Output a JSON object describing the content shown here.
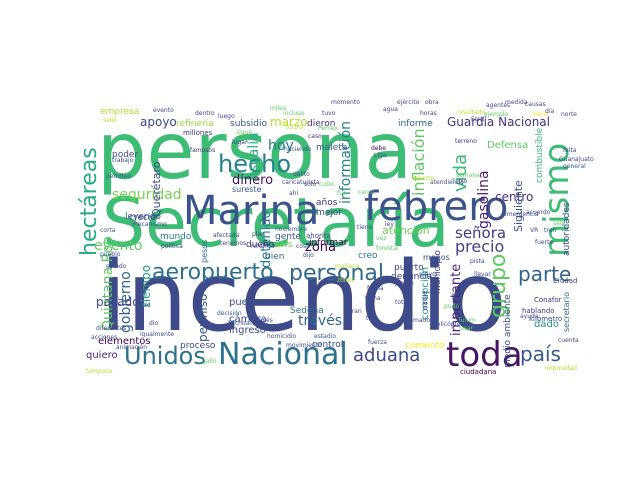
{
  "words": [
    {
      "text": "persona",
      "color": "#3cbc75"
    },
    {
      "text": "Secretaría",
      "color": "#3cbc75"
    },
    {
      "text": "incendio",
      "color": "#3e4a89"
    },
    {
      "text": "Marina",
      "color": "#3b528b"
    },
    {
      "text": "febrero",
      "color": "#3b528b"
    },
    {
      "text": "toda",
      "color": "#471365"
    },
    {
      "text": "Nacional",
      "color": "#2c728e"
    },
    {
      "text": "aeropuerto",
      "color": "#2d708e"
    },
    {
      "text": "personal",
      "color": "#31688e"
    },
    {
      "text": "mismo",
      "color": "#3cbc75"
    },
    {
      "text": "hecho",
      "color": "#26828e"
    },
    {
      "text": "parte",
      "color": "#33638d"
    },
    {
      "text": "Unidos",
      "color": "#2c728e"
    },
    {
      "text": "país",
      "color": "#38588c"
    },
    {
      "text": "aduana",
      "color": "#3e4989"
    },
    {
      "text": "grupo",
      "color": "#5ec962"
    },
    {
      "text": "hectáreas",
      "color": "#27ad81"
    },
    {
      "text": "precio",
      "color": "#414487"
    },
    {
      "text": "vida",
      "color": "#3cbc75"
    },
    {
      "text": "señora",
      "color": "#453781"
    },
    {
      "text": "seguridad",
      "color": "#7ad151"
    },
    {
      "text": "información",
      "color": "#26828e"
    },
    {
      "text": "inflación",
      "color": "#5ec962"
    },
    {
      "text": "fiscalía",
      "color": "#29af7f"
    },
    {
      "text": "Quintana Roo",
      "color": "#5ec962"
    },
    {
      "text": "evento",
      "color": "#5ec962"
    },
    {
      "text": "Guardia Nacional",
      "color": "#46337e"
    },
    {
      "text": "centro",
      "color": "#46307e"
    },
    {
      "text": "hoy",
      "color": "#2a788e"
    },
    {
      "text": "zona",
      "color": "#440154"
    },
    {
      "text": "dinero",
      "color": "#471365"
    },
    {
      "text": "marzo",
      "color": "#b8de29"
    },
    {
      "text": "apoyo",
      "color": "#3e4a89"
    },
    {
      "text": "gasolina",
      "color": "#482173"
    },
    {
      "text": "gobierno",
      "color": "#33638d"
    },
    {
      "text": "Siguiente",
      "color": "#3b528b"
    },
    {
      "text": "importante",
      "color": "#482878"
    },
    {
      "text": "través",
      "color": "#31688e"
    },
    {
      "text": "pasado",
      "color": "#3f4788"
    },
    {
      "text": "detenido",
      "color": "#2a788e"
    },
    {
      "text": "atención",
      "color": "#6ece58"
    },
    {
      "text": "Querétaro",
      "color": "#3e4989"
    },
    {
      "text": "permiso",
      "color": "#39568c"
    },
    {
      "text": "tiempo",
      "color": "#1f9e89"
    },
    {
      "text": "elementos",
      "color": "#440154"
    },
    {
      "text": "quiero",
      "color": "#482475"
    },
    {
      "text": "cámara",
      "color": "#3f4788"
    },
    {
      "text": "ingreso",
      "color": "#3e4989"
    },
    {
      "text": "pueden",
      "color": "#3b528b"
    },
    {
      "text": "Sedena",
      "color": "#2e6e8e"
    },
    {
      "text": "denuncia",
      "color": "#423f85"
    },
    {
      "text": "control",
      "color": "#3e4a89"
    },
    {
      "text": "corrupción",
      "color": "#21918c"
    },
    {
      "text": "municipio",
      "color": "#3e4a89"
    },
    {
      "text": "medio ambiente",
      "color": "#3b528b"
    },
    {
      "text": "proceso",
      "color": "#3f4889"
    },
    {
      "text": "comentó",
      "color": "#fde725"
    },
    {
      "text": "dado",
      "color": "#21918c"
    },
    {
      "text": "secretario",
      "color": "#33638d"
    },
    {
      "text": "autoridades",
      "color": "#3b528b"
    },
    {
      "text": "combustible",
      "color": "#3cbb75"
    },
    {
      "text": "Defensa",
      "color": "#5ec962"
    },
    {
      "text": "informe",
      "color": "#33638d"
    },
    {
      "text": "refinería",
      "color": "#a0da39"
    },
    {
      "text": "empresa",
      "color": "#b5de2b"
    },
    {
      "text": "subsidio",
      "color": "#39568c"
    },
    {
      "text": "dieron",
      "color": "#46337e"
    },
    {
      "text": "poder",
      "color": "#3f4788"
    },
    {
      "text": "leyendo",
      "color": "#38588c"
    },
    {
      "text": "mundo",
      "color": "#2a788e"
    },
    {
      "text": "pesos",
      "color": "#2e6e8e"
    },
    {
      "text": "dueño",
      "color": "#482878"
    },
    {
      "text": "sureste",
      "color": "#3b528b"
    },
    {
      "text": "mejor",
      "color": "#3e4a89"
    },
    {
      "text": "informar",
      "color": "#440154"
    },
    {
      "text": "gente",
      "color": "#3b528b"
    },
    {
      "text": "seis",
      "color": "#7ad151"
    },
    {
      "text": "bien",
      "color": "#31688e"
    },
    {
      "text": "creo",
      "color": "#2c728e"
    },
    {
      "text": "menos",
      "color": "#3b528b"
    },
    {
      "text": "puerto",
      "color": "#3f4788"
    },
    {
      "text": "años",
      "color": "#46337e"
    },
    {
      "text": "creció",
      "color": "#3e4a89"
    },
    {
      "text": "maleta",
      "color": "#38588c"
    },
    {
      "text": "ciudadana",
      "color": "#440154"
    },
    {
      "text": "Ciudad",
      "color": "#3e4a89"
    },
    {
      "text": "hablando",
      "color": "#453781"
    },
    {
      "text": "kilómetro",
      "color": "#3e4989"
    },
    {
      "text": "Conafor",
      "color": "#46307e"
    },
    {
      "text": "ahorita",
      "color": "#3e4a89"
    },
    {
      "text": "nadie",
      "color": "#3f4788"
    },
    {
      "text": "millones",
      "color": "#46307e"
    },
    {
      "text": "famosos",
      "color": "#453781"
    },
    {
      "text": "petróleo",
      "color": "#3b528b"
    },
    {
      "text": "trabajo",
      "color": "#3e4a89"
    },
    {
      "text": "general",
      "color": "#33638d"
    },
    {
      "text": "debe",
      "color": "#440154"
    },
    {
      "text": "caricaturista",
      "color": "#3e4a89"
    },
    {
      "text": "noviembre",
      "color": "#3b528b"
    },
    {
      "text": "decisión",
      "color": "#38588c"
    },
    {
      "text": "Michoacán",
      "color": "#3e4a89"
    },
    {
      "text": "fuerza",
      "color": "#3e4a89"
    },
    {
      "text": "tomado",
      "color": "#3b528b"
    },
    {
      "text": "pista",
      "color": "#3e4a89"
    },
    {
      "text": "fútbol",
      "color": "#b8de29"
    },
    {
      "text": "terreno",
      "color": "#453781"
    },
    {
      "text": "haciendo",
      "color": "#3e4a89"
    },
    {
      "text": "miles",
      "color": "#5ec962"
    },
    {
      "text": "incluso",
      "color": "#5ec962"
    },
    {
      "text": "tuvo",
      "color": "#3e4a89"
    },
    {
      "text": "caso",
      "color": "#46337e"
    },
    {
      "text": "Liga",
      "color": "#3b528b"
    },
    {
      "text": "resultado",
      "color": "#c2df23"
    },
    {
      "text": "ejemplo",
      "color": "#5ec962"
    },
    {
      "text": "hace",
      "color": "#fde725"
    },
    {
      "text": "día",
      "color": "#3e4a89"
    },
    {
      "text": "política",
      "color": "#3e4989"
    },
    {
      "text": "pueblo",
      "color": "#3b528b"
    },
    {
      "text": "corta",
      "color": "#38588c"
    },
    {
      "text": "mecanismo",
      "color": "#3e4a89"
    },
    {
      "text": "helicóptero",
      "color": "#3b528b"
    },
    {
      "text": "ayuda",
      "color": "#3e4a89"
    },
    {
      "text": "diferentes",
      "color": "#3e4a89"
    },
    {
      "text": "acciones",
      "color": "#3b528b"
    },
    {
      "text": "movimiento",
      "color": "#3e4a89"
    },
    {
      "text": "estadio",
      "color": "#3b528b"
    },
    {
      "text": "cuenta",
      "color": "#3e4a89"
    },
    {
      "text": "animación",
      "color": "#3e4a89"
    },
    {
      "text": "impunidad",
      "color": "#b8de29"
    },
    {
      "text": "tampoco",
      "color": "#b5de2b"
    },
    {
      "text": "delito",
      "color": "#3e4a89"
    },
    {
      "text": "vez",
      "color": "#5ec962"
    },
    {
      "text": "forestal",
      "color": "#5ec962"
    },
    {
      "text": "ley",
      "color": "#3e4a89"
    },
    {
      "text": "pudo",
      "color": "#5ec962"
    },
    {
      "text": "Tulum",
      "color": "#5ec962"
    },
    {
      "text": "usar",
      "color": "#5ec962"
    },
    {
      "text": "través",
      "color": "#3e4a89"
    },
    {
      "text": "cosa",
      "color": "#3e4a89"
    },
    {
      "text": "gallo",
      "color": "#5ec962"
    },
    {
      "text": "igualmente",
      "color": "#3e4a89"
    },
    {
      "text": "estado",
      "color": "#3e4a89"
    },
    {
      "text": "afectada",
      "color": "#3e4a89"
    },
    {
      "text": "tenemos",
      "color": "#3e4a89"
    },
    {
      "text": "sigue",
      "color": "#5ec962"
    },
    {
      "text": "homicidio",
      "color": "#3e4a89"
    },
    {
      "text": "lugar",
      "color": "#3e4a89"
    },
    {
      "text": "solo",
      "color": "#3e4a89"
    },
    {
      "text": "ahí",
      "color": "#3e4a89"
    },
    {
      "text": "tras",
      "color": "#3e4a89"
    },
    {
      "text": "atendiendo",
      "color": "#3e4a89"
    },
    {
      "text": "reporte",
      "color": "#b8de29"
    },
    {
      "text": "cubo",
      "color": "#5ec962"
    },
    {
      "text": "fue",
      "color": "#5ec962"
    },
    {
      "text": "cerca",
      "color": "#5ec962"
    },
    {
      "text": "reforma",
      "color": "#3e4a89"
    },
    {
      "text": "mañana",
      "color": "#b8de29"
    },
    {
      "text": "plan",
      "color": "#3e4a89"
    },
    {
      "text": "semana",
      "color": "#5ec962"
    },
    {
      "text": "rojo",
      "color": "#3e4a89"
    },
    {
      "text": "emergencia",
      "color": "#3e4a89"
    },
    {
      "text": "acuerdo",
      "color": "#3e4a89"
    },
    {
      "text": "Guanajuato",
      "color": "#3e4a89"
    },
    {
      "text": "fuerte",
      "color": "#3e4a89"
    },
    {
      "text": "sale",
      "color": "#5ec962"
    },
    {
      "text": "VR",
      "color": "#3e4a89"
    },
    {
      "text": "tren",
      "color": "#3e4a89"
    },
    {
      "text": "Lado",
      "color": "#3e4a89"
    },
    {
      "text": "zonas",
      "color": "#b8de29"
    },
    {
      "text": "dijo",
      "color": "#3e4a89"
    },
    {
      "text": "gran",
      "color": "#3e4a89"
    },
    {
      "text": "tema",
      "color": "#3e4a89"
    },
    {
      "text": "total",
      "color": "#3e4a89"
    },
    {
      "text": "mayor",
      "color": "#3e4a89"
    },
    {
      "text": "llevar",
      "color": "#3e4a89"
    },
    {
      "text": "puede",
      "color": "#3e4a89"
    },
    {
      "text": "fecha",
      "color": "#3e4a89"
    },
    {
      "text": "tiene",
      "color": "#3e4a89"
    },
    {
      "text": "Pemex",
      "color": "#5ec962"
    },
    {
      "text": "agua",
      "color": "#3e4a89"
    },
    {
      "text": "Ford",
      "color": "#3e4a89"
    },
    {
      "text": "evento",
      "color": "#3e4a89"
    },
    {
      "text": "dentro",
      "color": "#3e4a89"
    },
    {
      "text": "luego",
      "color": "#3e4a89"
    },
    {
      "text": "salió",
      "color": "#b8de29"
    },
    {
      "text": "momento",
      "color": "#3e4a89"
    },
    {
      "text": "ejército",
      "color": "#3e4a89"
    },
    {
      "text": "causas",
      "color": "#3e4a89"
    },
    {
      "text": "agentes",
      "color": "#3e4a89"
    },
    {
      "text": "horas",
      "color": "#3e4a89"
    },
    {
      "text": "obra",
      "color": "#3e4a89"
    },
    {
      "text": "norte",
      "color": "#3e4a89"
    },
    {
      "text": "medida",
      "color": "#3e4a89"
    },
    {
      "text": "falta",
      "color": "#3e4a89"
    },
    {
      "text": "dio",
      "color": "#3e4a89"
    }
  ]
}
